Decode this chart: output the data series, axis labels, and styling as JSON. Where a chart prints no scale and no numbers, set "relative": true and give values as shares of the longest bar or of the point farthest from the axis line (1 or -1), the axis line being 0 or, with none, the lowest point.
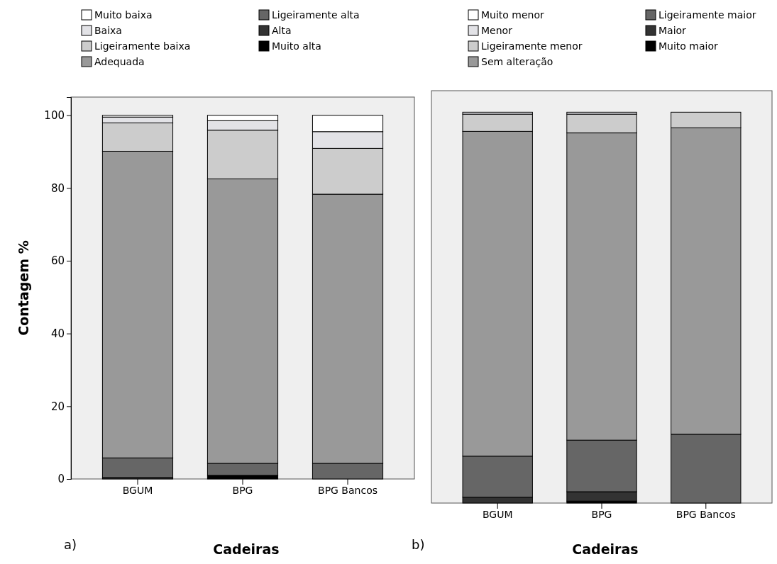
{
  "chart_data": [
    {
      "type": "bar",
      "stacked": true,
      "xlabel": "Cadeiras",
      "ylabel": "Contagem %",
      "categories": [
        "BGUM",
        "BPG",
        "BPG Bancos"
      ],
      "ylim": [
        0,
        105
      ],
      "yticks": [
        0,
        20,
        40,
        60,
        80,
        100
      ],
      "grid": false,
      "legend": "top",
      "annotations": [
        "a)"
      ],
      "series": [
        {
          "name": "Muito alta",
          "color": "#000000",
          "values": [
            null,
            1.0,
            null
          ]
        },
        {
          "name": "Alta",
          "color": "#333333",
          "values": [
            0.4,
            null,
            null
          ]
        },
        {
          "name": "Ligeiramente alta",
          "color": "#666666",
          "values": [
            5.4,
            3.3,
            4.3
          ]
        },
        {
          "name": "Adequada",
          "color": "#999999",
          "values": [
            84.3,
            78.2,
            74.0
          ]
        },
        {
          "name": "Ligeiramente baixa",
          "color": "#cccccc",
          "values": [
            7.8,
            13.4,
            12.6
          ]
        },
        {
          "name": "Baixa",
          "color": "#e2e2e6",
          "values": [
            1.6,
            2.6,
            4.6
          ]
        },
        {
          "name": "Muito baixa",
          "color": "#ffffff",
          "values": [
            0.5,
            1.5,
            4.5
          ]
        }
      ]
    },
    {
      "type": "bar",
      "stacked": true,
      "relative": true,
      "xlabel": "Cadeiras",
      "categories": [
        "BGUM",
        "BPG",
        "BPG Bancos"
      ],
      "grid": false,
      "legend": "top",
      "annotations": [
        "b)"
      ],
      "series": [
        {
          "name": "Muito maior",
          "color": "#000000",
          "values": [
            null,
            0.005,
            null
          ]
        },
        {
          "name": "Maior",
          "color": "#333333",
          "values": [
            0.015,
            0.024,
            null
          ]
        },
        {
          "name": "Ligeiramente maior",
          "color": "#666666",
          "values": [
            0.105,
            0.132,
            0.176
          ]
        },
        {
          "name": "Sem alteração",
          "color": "#999999",
          "values": [
            0.831,
            0.786,
            0.784
          ]
        },
        {
          "name": "Ligeiramente menor",
          "color": "#cccccc",
          "values": [
            0.044,
            0.048,
            0.04
          ]
        },
        {
          "name": "Menor",
          "color": "#e2e2e6",
          "values": [
            0.005,
            0.005,
            null
          ]
        },
        {
          "name": "Muito menor",
          "color": "#ffffff",
          "values": [
            null,
            null,
            null
          ]
        }
      ]
    }
  ]
}
